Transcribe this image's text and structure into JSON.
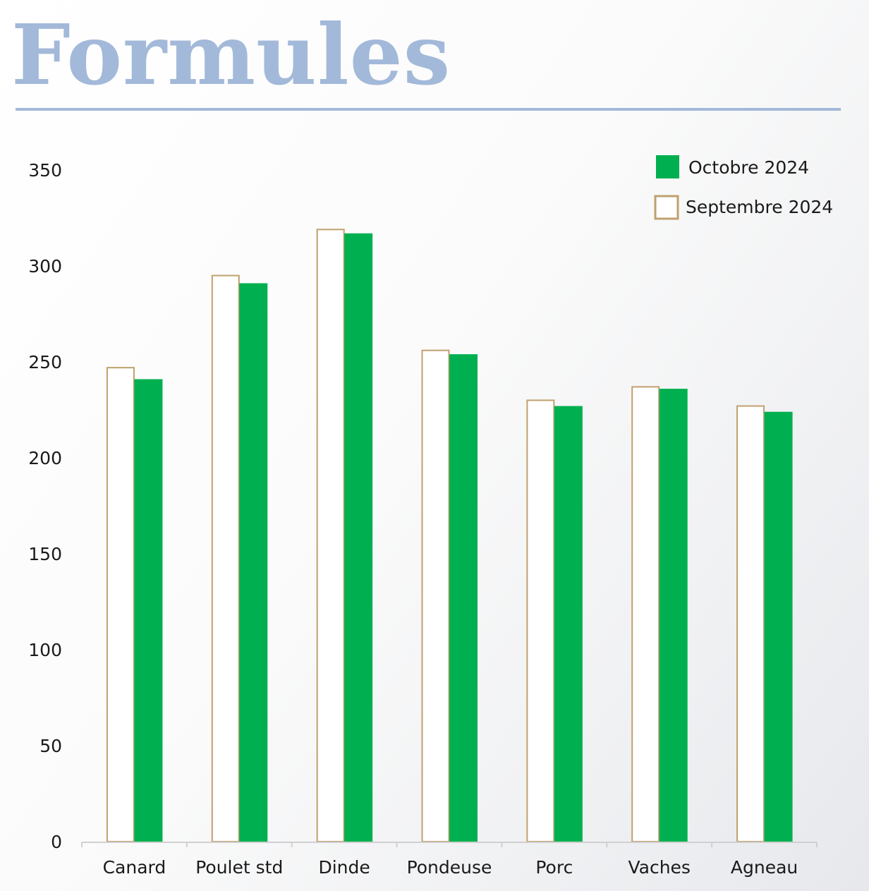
{
  "title": "Formules",
  "colors": {
    "title": "#a3b9d9",
    "october_fill": "#00b050",
    "september_outline": "#c0a06e",
    "axis": "#d0d0d0"
  },
  "chart_data": {
    "type": "bar",
    "categories": [
      "Canard",
      "Poulet std",
      "Dinde",
      "Pondeuse",
      "Porc",
      "Vaches",
      "Agneau"
    ],
    "series": [
      {
        "name": "Septembre 2024",
        "values": [
          247,
          295,
          319,
          256,
          230,
          237,
          227
        ],
        "style": "outline"
      },
      {
        "name": "Octobre 2024",
        "values": [
          241,
          291,
          317,
          254,
          227,
          236,
          224
        ],
        "style": "filled"
      }
    ],
    "ylim": [
      0,
      350
    ],
    "yticks": [
      0,
      50,
      100,
      150,
      200,
      250,
      300,
      350
    ],
    "grid": false,
    "legend": {
      "position": "top-right",
      "items": [
        "Octobre 2024",
        "Septembre 2024"
      ]
    },
    "xlabel": "",
    "ylabel": ""
  }
}
